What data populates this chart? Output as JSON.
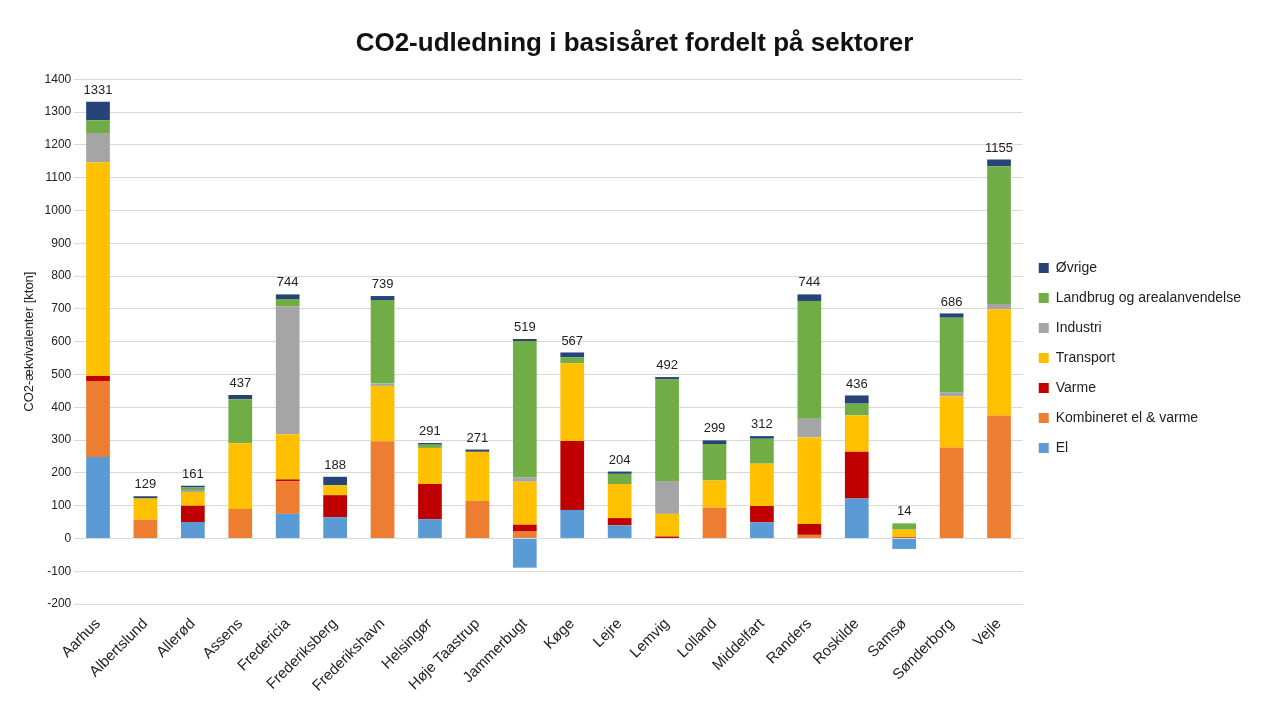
{
  "chart_data": {
    "type": "bar",
    "title": "CO2-udledning i basisåret fordelt på sektorer",
    "ylabel": "CO2-ækvivalenter [kton]",
    "categories": [
      "Aarhus",
      "Albertslund",
      "Allerød",
      "Assens",
      "Fredericia",
      "Frederiksberg",
      "Frederikshavn",
      "Helsingør",
      "Høje Taastrup",
      "Jammerbugt",
      "Køge",
      "Lejre",
      "Lemvig",
      "Lolland",
      "Middelfart",
      "Randers",
      "Roskilde",
      "Samsø",
      "Sønderborg",
      "Vejle"
    ],
    "stacked": true,
    "series": [
      {
        "name": "El",
        "color": "#5b9bd5",
        "values": [
          248,
          0,
          50,
          0,
          75,
          65,
          0,
          59,
          0,
          -89,
          87,
          40,
          0,
          0,
          49,
          0,
          122,
          -32,
          0,
          0
        ]
      },
      {
        "name": "Kombineret el & varme",
        "color": "#ed7d31",
        "values": [
          232,
          57,
          0,
          90,
          100,
          0,
          296,
          0,
          115,
          21,
          0,
          0,
          0,
          94,
          0,
          11,
          0,
          2,
          277,
          375
        ]
      },
      {
        "name": "Varme",
        "color": "#c00000",
        "values": [
          15,
          0,
          50,
          0,
          5,
          67,
          0,
          107,
          0,
          21,
          210,
          22,
          6,
          0,
          50,
          33,
          142,
          2,
          0,
          0
        ]
      },
      {
        "name": "Transport",
        "color": "#ffc000",
        "values": [
          652,
          65,
          42,
          200,
          138,
          30,
          169,
          110,
          149,
          131,
          237,
          104,
          69,
          83,
          129,
          264,
          111,
          23,
          156,
          324
        ]
      },
      {
        "name": "Industri",
        "color": "#a5a5a5",
        "values": [
          89,
          0,
          6,
          0,
          390,
          0,
          7,
          0,
          0,
          13,
          0,
          0,
          100,
          0,
          0,
          57,
          0,
          0,
          13,
          16
        ]
      },
      {
        "name": "Landbrug og arealanvendelse",
        "color": "#70ad47",
        "values": [
          39,
          0,
          7,
          134,
          22,
          0,
          255,
          10,
          0,
          416,
          18,
          31,
          310,
          111,
          76,
          359,
          36,
          19,
          227,
          420
        ]
      },
      {
        "name": "Øvrige",
        "color": "#264478",
        "values": [
          56,
          7,
          6,
          13,
          14,
          26,
          12,
          5,
          7,
          6,
          15,
          7,
          7,
          11,
          8,
          20,
          25,
          0,
          13,
          20
        ]
      }
    ],
    "totals": [
      "1331",
      "129",
      "161",
      "437",
      "744",
      "188",
      "739",
      "291",
      "271",
      "519",
      "567",
      "204",
      "492",
      "299",
      "312",
      "744",
      "436",
      "14",
      "686",
      "1155"
    ],
    "ylim": [
      -200,
      1400
    ],
    "yticks": [
      -200,
      -100,
      0,
      100,
      200,
      300,
      400,
      500,
      600,
      700,
      800,
      900,
      1000,
      1100,
      1200,
      1300,
      1400
    ],
    "grid": "y",
    "legend": "right"
  }
}
